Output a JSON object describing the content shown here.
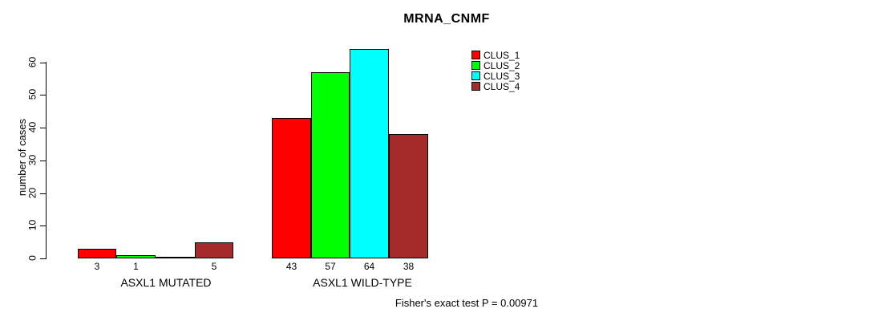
{
  "chart_data": {
    "type": "bar",
    "title": "MRNA_CNMF",
    "ylabel": "number of cases",
    "xlabel": "",
    "ylim": [
      0,
      60
    ],
    "yticks": [
      0,
      10,
      20,
      30,
      40,
      50,
      60
    ],
    "grid": false,
    "legend_position": "top-right",
    "series": [
      {
        "name": "CLUS_1",
        "color": "#FF0000"
      },
      {
        "name": "CLUS_2",
        "color": "#00FF00"
      },
      {
        "name": "CLUS_3",
        "color": "#00FFFF"
      },
      {
        "name": "CLUS_4",
        "color": "#A52A2A"
      }
    ],
    "categories": [
      "ASXL1 MUTATED",
      "ASXL1 WILD-TYPE"
    ],
    "groups": [
      {
        "label": "ASXL1 MUTATED",
        "values": [
          3,
          1,
          0,
          5
        ],
        "bar_labels": [
          "3",
          "1",
          "",
          "5"
        ]
      },
      {
        "label": "ASXL1 WILD-TYPE",
        "values": [
          43,
          57,
          64,
          38
        ],
        "bar_labels": [
          "43",
          "57",
          "64",
          "38"
        ]
      }
    ],
    "footer": "Fisher's exact test P = 0.00971"
  }
}
